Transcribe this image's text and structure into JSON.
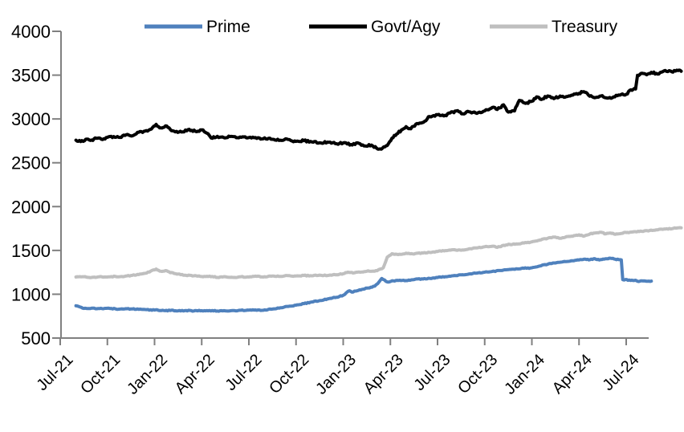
{
  "chart_data": {
    "type": "line",
    "title": "",
    "xlabel": "",
    "ylabel": "",
    "grid": false,
    "legend_position": "top",
    "ylim": [
      500,
      4000
    ],
    "y_ticks": [
      4000,
      3500,
      3000,
      2500,
      2000,
      1500,
      1000,
      500
    ],
    "x_unit": "months since Jul-2021",
    "x_range": [
      0,
      39.5
    ],
    "x_tick_positions": [
      0,
      3,
      6,
      9,
      12,
      15,
      18,
      21,
      24,
      27,
      30,
      33,
      36
    ],
    "x_tick_labels": [
      "Jul-21",
      "Oct-21",
      "Jan-22",
      "Apr-22",
      "Jul-22",
      "Oct-22",
      "Jan-23",
      "Apr-23",
      "Jul-23",
      "Oct-23",
      "Jan-24",
      "Apr-24",
      "Jul-24"
    ],
    "axis_color": "#808080",
    "series": [
      {
        "name": "Prime",
        "color": "#4F81BD",
        "noise_amplitude": 5,
        "points": [
          [
            1.0,
            868
          ],
          [
            1.2,
            858
          ],
          [
            1.5,
            838
          ],
          [
            2,
            842
          ],
          [
            2.5,
            836
          ],
          [
            3,
            840
          ],
          [
            3.5,
            834
          ],
          [
            4,
            831
          ],
          [
            4.5,
            833
          ],
          [
            5,
            827
          ],
          [
            5.5,
            824
          ],
          [
            6,
            820
          ],
          [
            6.5,
            817
          ],
          [
            7,
            814
          ],
          [
            7.5,
            811
          ],
          [
            8,
            814
          ],
          [
            8.5,
            809
          ],
          [
            9,
            812
          ],
          [
            9.5,
            814
          ],
          [
            10,
            809
          ],
          [
            10.5,
            811
          ],
          [
            11,
            814
          ],
          [
            11.5,
            817
          ],
          [
            12,
            819
          ],
          [
            12.5,
            817
          ],
          [
            13,
            822
          ],
          [
            13.5,
            831
          ],
          [
            14,
            845
          ],
          [
            14.5,
            861
          ],
          [
            15,
            876
          ],
          [
            15.5,
            892
          ],
          [
            16,
            911
          ],
          [
            16.5,
            927
          ],
          [
            17,
            946
          ],
          [
            17.5,
            962
          ],
          [
            18,
            988
          ],
          [
            18.2,
            1018
          ],
          [
            18.4,
            1040
          ],
          [
            18.55,
            1024
          ],
          [
            18.8,
            1036
          ],
          [
            19.2,
            1056
          ],
          [
            19.6,
            1072
          ],
          [
            20,
            1092
          ],
          [
            20.2,
            1122
          ],
          [
            20.45,
            1180
          ],
          [
            20.8,
            1140
          ],
          [
            21.2,
            1152
          ],
          [
            21.6,
            1160
          ],
          [
            22,
            1156
          ],
          [
            22.5,
            1166
          ],
          [
            23,
            1176
          ],
          [
            23.5,
            1181
          ],
          [
            24,
            1191
          ],
          [
            24.5,
            1200
          ],
          [
            25,
            1211
          ],
          [
            25.5,
            1221
          ],
          [
            26,
            1231
          ],
          [
            26.5,
            1241
          ],
          [
            27,
            1251
          ],
          [
            27.5,
            1261
          ],
          [
            28,
            1271
          ],
          [
            28.5,
            1281
          ],
          [
            29,
            1291
          ],
          [
            29.5,
            1296
          ],
          [
            30,
            1302
          ],
          [
            30.5,
            1322
          ],
          [
            31,
            1342
          ],
          [
            31.5,
            1357
          ],
          [
            32,
            1371
          ],
          [
            32.5,
            1381
          ],
          [
            33,
            1391
          ],
          [
            33.4,
            1401
          ],
          [
            33.7,
            1394
          ],
          [
            34,
            1406
          ],
          [
            34.3,
            1391
          ],
          [
            34.6,
            1401
          ],
          [
            35,
            1411
          ],
          [
            35.3,
            1400
          ],
          [
            35.69,
            1392
          ],
          [
            35.78,
            1166
          ],
          [
            36.2,
            1162
          ],
          [
            36.6,
            1160
          ],
          [
            36.72,
            1148
          ],
          [
            37,
            1152
          ],
          [
            37.3,
            1148
          ],
          [
            37.6,
            1150
          ]
        ]
      },
      {
        "name": "Govt/Agy",
        "color": "#000000",
        "noise_amplitude": 11,
        "points": [
          [
            1.0,
            2758
          ],
          [
            1.3,
            2742
          ],
          [
            1.7,
            2770
          ],
          [
            2,
            2760
          ],
          [
            2.3,
            2780
          ],
          [
            2.7,
            2765
          ],
          [
            3,
            2790
          ],
          [
            3.4,
            2800
          ],
          [
            3.8,
            2790
          ],
          [
            4.2,
            2820
          ],
          [
            4.6,
            2808
          ],
          [
            5,
            2848
          ],
          [
            5.4,
            2862
          ],
          [
            5.8,
            2885
          ],
          [
            6.1,
            2938
          ],
          [
            6.4,
            2898
          ],
          [
            6.7,
            2922
          ],
          [
            7,
            2880
          ],
          [
            7.4,
            2858
          ],
          [
            7.8,
            2852
          ],
          [
            8.2,
            2882
          ],
          [
            8.6,
            2858
          ],
          [
            9,
            2876
          ],
          [
            9.4,
            2832
          ],
          [
            9.6,
            2782
          ],
          [
            10,
            2802
          ],
          [
            10.4,
            2788
          ],
          [
            10.8,
            2800
          ],
          [
            11.2,
            2786
          ],
          [
            11.6,
            2796
          ],
          [
            12,
            2788
          ],
          [
            12.5,
            2778
          ],
          [
            13,
            2784
          ],
          [
            13.5,
            2768
          ],
          [
            14,
            2758
          ],
          [
            14.5,
            2766
          ],
          [
            15,
            2744
          ],
          [
            15.5,
            2752
          ],
          [
            16,
            2738
          ],
          [
            16.5,
            2728
          ],
          [
            17,
            2736
          ],
          [
            17.5,
            2718
          ],
          [
            18,
            2726
          ],
          [
            18.5,
            2708
          ],
          [
            19,
            2722
          ],
          [
            19.4,
            2692
          ],
          [
            19.8,
            2702
          ],
          [
            20.2,
            2656
          ],
          [
            20.5,
            2668
          ],
          [
            20.8,
            2696
          ],
          [
            21.1,
            2780
          ],
          [
            21.4,
            2828
          ],
          [
            21.7,
            2874
          ],
          [
            22,
            2912
          ],
          [
            22.3,
            2888
          ],
          [
            22.7,
            2948
          ],
          [
            23.1,
            2962
          ],
          [
            23.5,
            3028
          ],
          [
            24,
            3048
          ],
          [
            24.4,
            3034
          ],
          [
            24.8,
            3068
          ],
          [
            25.2,
            3092
          ],
          [
            25.6,
            3058
          ],
          [
            26,
            3082
          ],
          [
            26.5,
            3064
          ],
          [
            27,
            3092
          ],
          [
            27.5,
            3132
          ],
          [
            27.8,
            3108
          ],
          [
            28.2,
            3162
          ],
          [
            28.5,
            3078
          ],
          [
            28.9,
            3092
          ],
          [
            29.2,
            3212
          ],
          [
            29.6,
            3178
          ],
          [
            30,
            3202
          ],
          [
            30.3,
            3252
          ],
          [
            30.6,
            3222
          ],
          [
            31,
            3262
          ],
          [
            31.4,
            3232
          ],
          [
            31.8,
            3262
          ],
          [
            32.2,
            3256
          ],
          [
            32.6,
            3272
          ],
          [
            33,
            3292
          ],
          [
            33.3,
            3312
          ],
          [
            33.6,
            3272
          ],
          [
            34,
            3242
          ],
          [
            34.4,
            3262
          ],
          [
            34.8,
            3238
          ],
          [
            35.2,
            3252
          ],
          [
            35.6,
            3272
          ],
          [
            36,
            3282
          ],
          [
            36.3,
            3332
          ],
          [
            36.6,
            3342
          ],
          [
            36.72,
            3498
          ],
          [
            37,
            3522
          ],
          [
            37.3,
            3504
          ],
          [
            37.6,
            3532
          ],
          [
            38,
            3512
          ],
          [
            38.4,
            3548
          ],
          [
            38.9,
            3538
          ],
          [
            39.3,
            3552
          ],
          [
            39.5,
            3545
          ]
        ]
      },
      {
        "name": "Treasury",
        "color": "#BFBFBF",
        "noise_amplitude": 5,
        "points": [
          [
            1.0,
            1196
          ],
          [
            1.5,
            1200
          ],
          [
            2,
            1192
          ],
          [
            2.5,
            1200
          ],
          [
            3,
            1196
          ],
          [
            3.5,
            1204
          ],
          [
            4,
            1200
          ],
          [
            4.5,
            1214
          ],
          [
            5,
            1224
          ],
          [
            5.5,
            1242
          ],
          [
            6.1,
            1288
          ],
          [
            6.4,
            1262
          ],
          [
            6.7,
            1270
          ],
          [
            7,
            1246
          ],
          [
            7.5,
            1230
          ],
          [
            8,
            1216
          ],
          [
            8.5,
            1210
          ],
          [
            9,
            1202
          ],
          [
            9.5,
            1206
          ],
          [
            10,
            1192
          ],
          [
            10.5,
            1200
          ],
          [
            11,
            1192
          ],
          [
            11.5,
            1200
          ],
          [
            12,
            1196
          ],
          [
            12.5,
            1204
          ],
          [
            13,
            1200
          ],
          [
            13.5,
            1208
          ],
          [
            14,
            1204
          ],
          [
            14.5,
            1212
          ],
          [
            15,
            1208
          ],
          [
            15.5,
            1214
          ],
          [
            16,
            1210
          ],
          [
            16.5,
            1218
          ],
          [
            17,
            1214
          ],
          [
            17.5,
            1222
          ],
          [
            18,
            1234
          ],
          [
            18.3,
            1252
          ],
          [
            18.7,
            1244
          ],
          [
            19,
            1254
          ],
          [
            19.5,
            1262
          ],
          [
            20,
            1262
          ],
          [
            20.3,
            1284
          ],
          [
            20.55,
            1302
          ],
          [
            20.8,
            1422
          ],
          [
            21.1,
            1462
          ],
          [
            21.5,
            1452
          ],
          [
            22,
            1468
          ],
          [
            22.5,
            1458
          ],
          [
            23,
            1472
          ],
          [
            23.5,
            1478
          ],
          [
            24,
            1488
          ],
          [
            24.5,
            1498
          ],
          [
            25,
            1508
          ],
          [
            25.5,
            1502
          ],
          [
            26,
            1518
          ],
          [
            26.5,
            1528
          ],
          [
            27,
            1542
          ],
          [
            27.5,
            1548
          ],
          [
            27.8,
            1534
          ],
          [
            28.2,
            1558
          ],
          [
            28.6,
            1568
          ],
          [
            29,
            1574
          ],
          [
            29.5,
            1584
          ],
          [
            30,
            1598
          ],
          [
            30.5,
            1618
          ],
          [
            31,
            1638
          ],
          [
            31.5,
            1652
          ],
          [
            31.8,
            1638
          ],
          [
            32.2,
            1658
          ],
          [
            32.6,
            1662
          ],
          [
            33,
            1678
          ],
          [
            33.3,
            1662
          ],
          [
            33.7,
            1688
          ],
          [
            34,
            1698
          ],
          [
            34.4,
            1708
          ],
          [
            34.7,
            1688
          ],
          [
            35,
            1698
          ],
          [
            35.3,
            1684
          ],
          [
            35.7,
            1694
          ],
          [
            36,
            1704
          ],
          [
            36.5,
            1714
          ],
          [
            37,
            1718
          ],
          [
            37.5,
            1728
          ],
          [
            38,
            1734
          ],
          [
            38.5,
            1744
          ],
          [
            39,
            1752
          ],
          [
            39.5,
            1758
          ]
        ]
      }
    ]
  }
}
